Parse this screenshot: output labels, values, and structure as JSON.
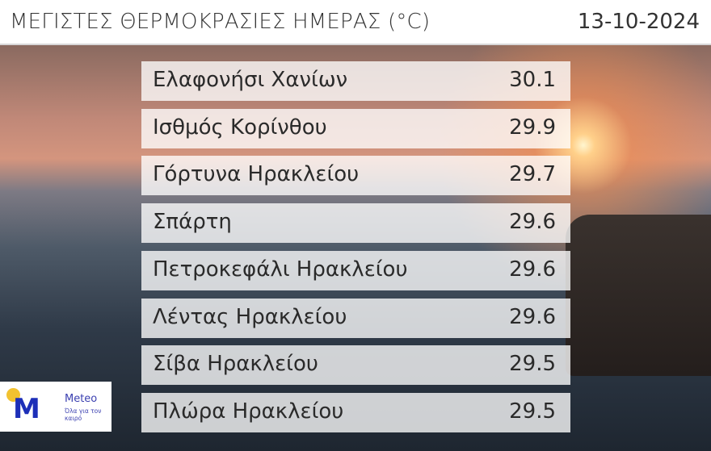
{
  "header": {
    "title": "ΜΕΓΙΣΤΕΣ ΘΕΡΜΟΚΡΑΣΙΕΣ ΗΜΕΡΑΣ (°C)",
    "date": "13-10-2024"
  },
  "rows": [
    {
      "name": "Ελαφονήσι Χανίων",
      "value": "30.1"
    },
    {
      "name": "Ισθμός Κορίνθου",
      "value": "29.9"
    },
    {
      "name": "Γόρτυνα Ηρακλείου",
      "value": "29.7"
    },
    {
      "name": "Σπάρτη",
      "value": "29.6"
    },
    {
      "name": "Πετροκεφάλι Ηρακλείου",
      "value": "29.6"
    },
    {
      "name": "Λέντας Ηρακλείου",
      "value": "29.6"
    },
    {
      "name": "Σίβα Ηρακλείου",
      "value": "29.5"
    },
    {
      "name": "Πλώρα Ηρακλείου",
      "value": "29.5"
    }
  ],
  "logo": {
    "letter": "M",
    "brand": "Meteo",
    "tagline": "Όλα για τον καιρό"
  },
  "colors": {
    "logo_blue": "#1d2fb8",
    "logo_sun": "#f2c230"
  }
}
